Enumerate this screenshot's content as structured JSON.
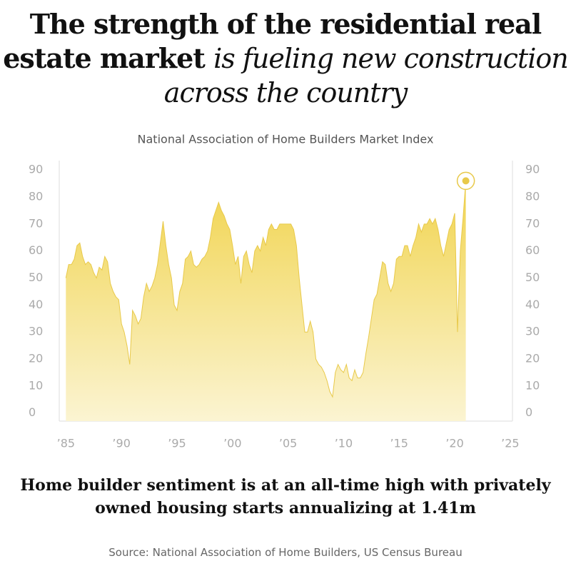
{
  "chart_data": {
    "type": "area",
    "title_parts": [
      "The strength of the residential real estate market",
      "is fueling new construction across the country"
    ],
    "subtitle": "National Association of Home Builders Market Index",
    "caption": "Home builder sentiment is at an all-time high with privately owned housing starts annualizing at 1.41m",
    "source": "Source: National Association of Home Builders, US Census Bureau",
    "color": "#e8c94a",
    "x": [
      1985,
      1985.25,
      1985.5,
      1985.75,
      1986,
      1986.25,
      1986.5,
      1986.75,
      1987,
      1987.25,
      1987.5,
      1987.75,
      1988,
      1988.25,
      1988.5,
      1988.75,
      1989,
      1989.25,
      1989.5,
      1989.75,
      1990,
      1990.25,
      1990.5,
      1990.75,
      1991,
      1991.25,
      1991.5,
      1991.75,
      1992,
      1992.25,
      1992.5,
      1992.75,
      1993,
      1993.25,
      1993.5,
      1993.75,
      1994,
      1994.25,
      1994.5,
      1994.75,
      1995,
      1995.25,
      1995.5,
      1995.75,
      1996,
      1996.25,
      1996.5,
      1996.75,
      1997,
      1997.25,
      1997.5,
      1997.75,
      1998,
      1998.25,
      1998.5,
      1998.75,
      1999,
      1999.25,
      1999.5,
      1999.75,
      2000,
      2000.25,
      2000.5,
      2000.75,
      2001,
      2001.25,
      2001.5,
      2001.75,
      2002,
      2002.25,
      2002.5,
      2002.75,
      2003,
      2003.25,
      2003.5,
      2003.75,
      2004,
      2004.25,
      2004.5,
      2004.75,
      2005,
      2005.25,
      2005.5,
      2005.75,
      2006,
      2006.25,
      2006.5,
      2006.75,
      2007,
      2007.25,
      2007.5,
      2007.75,
      2008,
      2008.25,
      2008.5,
      2008.75,
      2009,
      2009.25,
      2009.5,
      2009.75,
      2010,
      2010.25,
      2010.5,
      2010.75,
      2011,
      2011.25,
      2011.5,
      2011.75,
      2012,
      2012.25,
      2012.5,
      2012.75,
      2013,
      2013.25,
      2013.5,
      2013.75,
      2014,
      2014.25,
      2014.5,
      2014.75,
      2015,
      2015.25,
      2015.5,
      2015.75,
      2016,
      2016.25,
      2016.5,
      2016.75,
      2017,
      2017.25,
      2017.5,
      2017.75,
      2018,
      2018.25,
      2018.5,
      2018.75,
      2019,
      2019.25,
      2019.5,
      2019.75,
      2020,
      2020.25,
      2020.5,
      2020.75,
      2021
    ],
    "values": [
      50,
      55,
      55,
      57,
      62,
      63,
      58,
      55,
      56,
      55,
      52,
      50,
      54,
      53,
      58,
      56,
      48,
      45,
      43,
      42,
      33,
      30,
      25,
      18,
      38,
      36,
      33,
      35,
      43,
      48,
      45,
      47,
      50,
      55,
      63,
      71,
      62,
      55,
      50,
      40,
      38,
      45,
      48,
      57,
      58,
      60,
      55,
      54,
      55,
      57,
      58,
      60,
      65,
      72,
      75,
      78,
      75,
      73,
      70,
      68,
      62,
      55,
      58,
      48,
      58,
      60,
      55,
      52,
      60,
      62,
      60,
      65,
      62,
      68,
      70,
      68,
      68,
      70,
      70,
      70,
      70,
      70,
      68,
      62,
      50,
      40,
      30,
      30,
      34,
      30,
      20,
      18,
      17,
      15,
      12,
      8,
      6,
      15,
      18,
      16,
      15,
      18,
      13,
      12,
      16,
      13,
      13,
      15,
      22,
      28,
      35,
      42,
      44,
      50,
      56,
      55,
      48,
      45,
      48,
      57,
      58,
      58,
      62,
      62,
      58,
      62,
      65,
      70,
      67,
      70,
      70,
      72,
      70,
      72,
      68,
      62,
      58,
      63,
      68,
      70,
      74,
      30,
      60,
      72,
      86
    ],
    "xlim": [
      1984.4,
      2025.2
    ],
    "ylim": [
      -3,
      93.5
    ],
    "xticks": [
      {
        "value": 1985,
        "label": "’85"
      },
      {
        "value": 1990,
        "label": "’90"
      },
      {
        "value": 1995,
        "label": "’95"
      },
      {
        "value": 2000,
        "label": "’00"
      },
      {
        "value": 2005,
        "label": "’05"
      },
      {
        "value": 2010,
        "label": "’10"
      },
      {
        "value": 2015,
        "label": "’15"
      },
      {
        "value": 2020,
        "label": "’20"
      },
      {
        "value": 2025,
        "label": "’25"
      }
    ],
    "yticks": [
      0,
      10,
      20,
      30,
      40,
      50,
      60,
      70,
      80,
      90
    ]
  }
}
